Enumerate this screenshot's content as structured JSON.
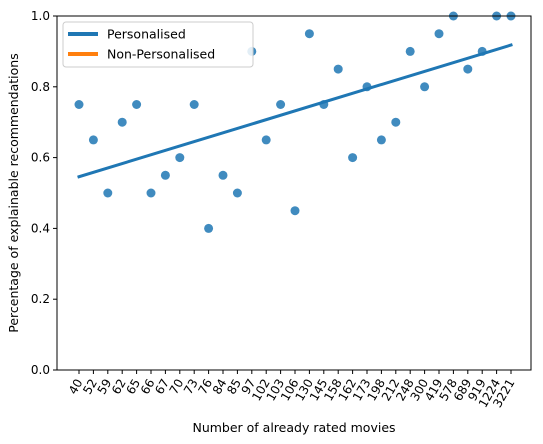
{
  "chart_data": {
    "type": "scatter",
    "xlabel": "Number of already rated movies",
    "ylabel": "Percentage of explainable recommendations",
    "categories": [
      "40",
      "52",
      "59",
      "62",
      "65",
      "66",
      "67",
      "70",
      "73",
      "76",
      "84",
      "85",
      "97",
      "102",
      "103",
      "106",
      "130",
      "145",
      "158",
      "162",
      "173",
      "198",
      "212",
      "248",
      "300",
      "419",
      "578",
      "689",
      "919",
      "1224",
      "3221"
    ],
    "ylim": [
      0.0,
      1.0
    ],
    "yticks": [
      "0.0",
      "0.2",
      "0.4",
      "0.6",
      "0.8",
      "1.0"
    ],
    "grid": false,
    "legend_position": "top-left",
    "series": [
      {
        "name": "Personalised",
        "color": "#1f77b4",
        "values": [
          0.75,
          0.65,
          0.5,
          0.7,
          0.75,
          0.5,
          0.55,
          0.6,
          0.75,
          0.4,
          0.55,
          0.5,
          0.9,
          0.65,
          0.75,
          0.45,
          0.95,
          0.75,
          0.85,
          0.6,
          0.8,
          0.65,
          0.7,
          0.9,
          0.8,
          0.95,
          1.0,
          0.85,
          0.9,
          1.0,
          1.0
        ],
        "trend": [
          0.546,
          0.918
        ]
      },
      {
        "name": "Non-Personalised",
        "color": "#ff7f0e",
        "values": []
      }
    ]
  }
}
